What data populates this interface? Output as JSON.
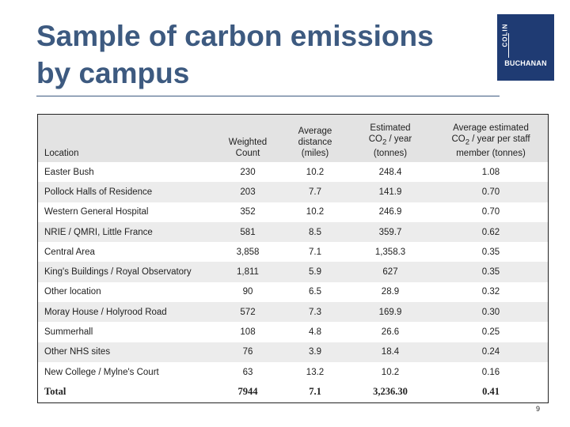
{
  "slide": {
    "title_line1": "Sample of carbon emissions",
    "title_line2": "by campus",
    "page_number": "9"
  },
  "logo": {
    "colin": "COLIN",
    "buchanan": "BUCHANAN",
    "colors": {
      "background": "#1f3b73",
      "text": "#ffffff"
    }
  },
  "colors": {
    "title": "#3d5a80",
    "header_bg": "#e3e3e3",
    "row_alt_bg": "#ececec"
  },
  "table": {
    "headers": {
      "location": "Location",
      "weighted_count_1": "Weighted",
      "weighted_count_2": "Count",
      "avg_distance_1": "Average",
      "avg_distance_2": "distance",
      "avg_distance_3": "(miles)",
      "est_co2_1": "Estimated",
      "est_co2_2a": "CO",
      "est_co2_2sub": "2",
      "est_co2_2b": " / year",
      "est_co2_3": "(tonnes)",
      "avg_est_1": "Average estimated",
      "avg_est_2a": "CO",
      "avg_est_2sub": "2",
      "avg_est_2b": " / year per staff",
      "avg_est_3": "member (tonnes)"
    },
    "rows": [
      {
        "location": "Easter Bush",
        "weighted_count": "230",
        "avg_distance": "10.2",
        "est_co2": "248.4",
        "avg_per_staff": "1.08"
      },
      {
        "location": "Pollock Halls of Residence",
        "weighted_count": "203",
        "avg_distance": "7.7",
        "est_co2": "141.9",
        "avg_per_staff": "0.70"
      },
      {
        "location": "Western General Hospital",
        "weighted_count": "352",
        "avg_distance": "10.2",
        "est_co2": "246.9",
        "avg_per_staff": "0.70"
      },
      {
        "location": "NRIE / QMRI, Little France",
        "weighted_count": "581",
        "avg_distance": "8.5",
        "est_co2": "359.7",
        "avg_per_staff": "0.62"
      },
      {
        "location": "Central Area",
        "weighted_count": "3,858",
        "avg_distance": "7.1",
        "est_co2": "1,358.3",
        "avg_per_staff": "0.35"
      },
      {
        "location": "King's Buildings / Royal Observatory",
        "weighted_count": "1,811",
        "avg_distance": "5.9",
        "est_co2": "627",
        "avg_per_staff": "0.35"
      },
      {
        "location": "Other location",
        "weighted_count": "90",
        "avg_distance": "6.5",
        "est_co2": "28.9",
        "avg_per_staff": "0.32"
      },
      {
        "location": "Moray House / Holyrood Road",
        "weighted_count": "572",
        "avg_distance": "7.3",
        "est_co2": "169.9",
        "avg_per_staff": "0.30"
      },
      {
        "location": "Summerhall",
        "weighted_count": "108",
        "avg_distance": "4.8",
        "est_co2": "26.6",
        "avg_per_staff": "0.25"
      },
      {
        "location": "Other NHS sites",
        "weighted_count": "76",
        "avg_distance": "3.9",
        "est_co2": "18.4",
        "avg_per_staff": "0.24"
      },
      {
        "location": "New College / Mylne's Court",
        "weighted_count": "63",
        "avg_distance": "13.2",
        "est_co2": "10.2",
        "avg_per_staff": "0.16"
      }
    ],
    "total": {
      "location": "Total",
      "weighted_count": "7944",
      "avg_distance": "7.1",
      "est_co2": "3,236.30",
      "avg_per_staff": "0.41"
    }
  }
}
